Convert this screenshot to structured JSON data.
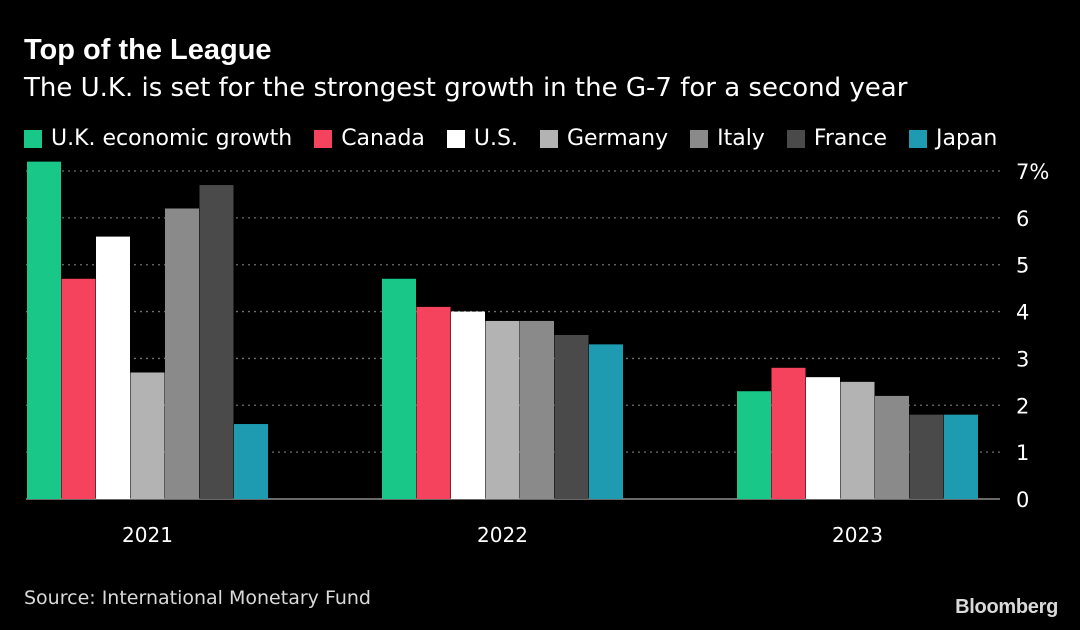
{
  "header": {
    "title": "Top of the League",
    "subtitle": "The U.K. is set for the strongest growth in the G-7 for a second year"
  },
  "colors": {
    "background": "#000000",
    "gridline": "#6e6e6e",
    "text": "#ffffff"
  },
  "chart_data": {
    "type": "bar",
    "title": "Top of the League",
    "subtitle": "The U.K. is set for the strongest growth in the G-7 for a second year",
    "categories": [
      "2021",
      "2022",
      "2023"
    ],
    "ylim": [
      0,
      7
    ],
    "yticks": [
      0,
      1,
      2,
      3,
      4,
      5,
      6,
      7
    ],
    "ytick_labels": [
      "0",
      "1",
      "2",
      "3",
      "4",
      "5",
      "6",
      "7%"
    ],
    "ylabel": "",
    "xlabel": "",
    "grid": "horizontal dotted",
    "legend_position": "top",
    "series": [
      {
        "name": "U.K. economic growth",
        "color": "#19c789",
        "values": [
          7.2,
          4.7,
          2.3
        ]
      },
      {
        "name": "Canada",
        "color": "#f5435d",
        "values": [
          4.7,
          4.1,
          2.8
        ]
      },
      {
        "name": "U.S.",
        "color": "#ffffff",
        "values": [
          5.6,
          4.0,
          2.6
        ]
      },
      {
        "name": "Germany",
        "color": "#b3b3b3",
        "values": [
          2.7,
          3.8,
          2.5
        ]
      },
      {
        "name": "Italy",
        "color": "#8a8a8a",
        "values": [
          6.2,
          3.8,
          2.2
        ]
      },
      {
        "name": "France",
        "color": "#4a4a4a",
        "values": [
          6.7,
          3.5,
          1.8
        ]
      },
      {
        "name": "Japan",
        "color": "#1e9bb0",
        "values": [
          1.6,
          3.3,
          1.8
        ]
      }
    ]
  },
  "footer": {
    "source": "Source: International Monetary Fund",
    "brand": "Bloomberg"
  }
}
